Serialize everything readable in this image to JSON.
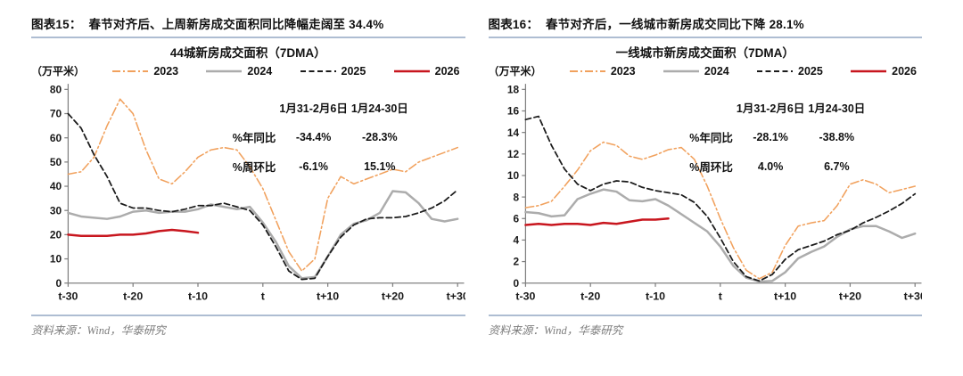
{
  "colors": {
    "series_2023": "#F1A15D",
    "series_2024": "#ACACAC",
    "series_2025": "#1B1B1B",
    "series_2026": "#C8161E",
    "axis": "#808080",
    "rule_line": "#AEBDD2",
    "source_text": "#7D7D7D"
  },
  "charts": [
    {
      "figure_label": "图表15：",
      "figure_title": "春节对齐后、上周新房成交面积同比降幅走阔至 34.4%",
      "chart_title": "44城新房成交面积（7DMA）",
      "unit_label": "（万平米）",
      "table": {
        "header": [
          "",
          "1月31-2月6日",
          "1月24-30日"
        ],
        "rows": [
          [
            "%年同比",
            "-34.4%",
            "-28.3%"
          ],
          [
            "%周环比",
            "-6.1%",
            "15.1%"
          ]
        ]
      },
      "source_label": "资料来源：Wind，华泰研究",
      "chart_data": {
        "type": "line",
        "x_labels": [
          "t-30",
          "t-20",
          "t-10",
          "t",
          "t+10",
          "t+20",
          "t+30"
        ],
        "x_range": [
          -30,
          30
        ],
        "x_step": 2,
        "ylim": [
          0,
          80
        ],
        "y_step": 10,
        "legend_position": "top",
        "grid": false,
        "series": [
          {
            "name": "2023",
            "color": "#F1A15D",
            "style": "dashdot",
            "width": 1.5,
            "values": [
              45,
              46,
              52,
              65,
              76,
              70,
              55,
              43,
              41,
              46,
              52,
              55,
              56,
              55,
              48,
              39,
              26,
              13,
              5,
              10,
              35,
              44,
              41,
              43,
              45,
              47,
              46,
              50,
              52,
              54,
              56
            ]
          },
          {
            "name": "2024",
            "color": "#ACACAC",
            "style": "solid",
            "width": 2.4,
            "values": [
              29,
              27.5,
              27,
              26.5,
              27.5,
              29.5,
              30,
              29,
              29.5,
              29.5,
              30.5,
              32.5,
              31.5,
              30.5,
              31.5,
              25,
              17,
              7,
              2,
              2.5,
              11,
              20,
              24.5,
              26,
              29,
              38,
              37.5,
              33,
              26.5,
              25.5,
              26.5
            ]
          },
          {
            "name": "2025",
            "color": "#1B1B1B",
            "style": "dashed",
            "width": 1.7,
            "values": [
              70,
              64,
              53,
              44,
              33,
              31,
              31,
              30,
              29.5,
              30.5,
              32,
              32,
              33,
              31.5,
              30,
              24,
              15,
              5,
              1.5,
              2,
              11,
              19,
              24,
              26.5,
              27,
              27,
              27.5,
              29,
              31,
              34,
              38.5
            ]
          },
          {
            "name": "2026",
            "color": "#C8161E",
            "style": "solid",
            "width": 2.4,
            "values": [
              20,
              19.5,
              19.5,
              19.5,
              20,
              20,
              20.5,
              21.5,
              22,
              21.5,
              20.8,
              null,
              null,
              null,
              null,
              null,
              null,
              null,
              null,
              null,
              null,
              null,
              null,
              null,
              null,
              null,
              null,
              null,
              null,
              null,
              null
            ]
          }
        ]
      }
    },
    {
      "figure_label": "图表16：",
      "figure_title": "春节对齐后，一线城市新房成交同比下降 28.1%",
      "chart_title": "一线城市新房成交面积（7DMA）",
      "unit_label": "（万平米）",
      "table": {
        "header": [
          "",
          "1月31-2月6日",
          "1月24-30日"
        ],
        "rows": [
          [
            "%年同比",
            "-28.1%",
            "-38.8%"
          ],
          [
            "%周环比",
            "4.0%",
            "6.7%"
          ]
        ]
      },
      "source_label": "资料来源：Wind，华泰研究",
      "chart_data": {
        "type": "line",
        "x_labels": [
          "t-30",
          "t-20",
          "t-10",
          "t",
          "t+10",
          "t+20",
          "t+30"
        ],
        "x_range": [
          -30,
          30
        ],
        "x_step": 2,
        "ylim": [
          0,
          18
        ],
        "y_step": 2,
        "legend_position": "top",
        "grid": false,
        "series": [
          {
            "name": "2023",
            "color": "#F1A15D",
            "style": "dashdot",
            "width": 1.5,
            "values": [
              7,
              7.2,
              7.6,
              9,
              10.5,
              12.3,
              13.1,
              12.8,
              11.8,
              11.5,
              11.9,
              12.4,
              12.6,
              11.5,
              9,
              6,
              3.3,
              1.2,
              0.4,
              1,
              3.5,
              5.3,
              5.6,
              5.8,
              7.2,
              9.2,
              9.6,
              9.2,
              8.4,
              8.7,
              9
            ]
          },
          {
            "name": "2024",
            "color": "#ACACAC",
            "style": "solid",
            "width": 2.4,
            "values": [
              6.6,
              6.5,
              6.2,
              6.3,
              7.8,
              8.3,
              8.7,
              8.5,
              7.7,
              7.6,
              7.8,
              7.2,
              6.4,
              5.6,
              4.8,
              3.4,
              1.6,
              0.5,
              0.15,
              0.2,
              1,
              2.3,
              2.9,
              3.4,
              4.3,
              5,
              5.3,
              5.3,
              4.8,
              4.2,
              4.6
            ]
          },
          {
            "name": "2025",
            "color": "#1B1B1B",
            "style": "dashed",
            "width": 1.7,
            "values": [
              15.2,
              15.5,
              12.8,
              10.6,
              9.2,
              8.6,
              9.2,
              9.5,
              9.4,
              8.9,
              8.6,
              8.4,
              8.2,
              7.5,
              6.2,
              4.2,
              2,
              0.6,
              0.2,
              0.8,
              2.2,
              3.1,
              3.5,
              3.9,
              4.5,
              4.9,
              5.6,
              6.1,
              6.7,
              7.4,
              8.3
            ]
          },
          {
            "name": "2026",
            "color": "#C8161E",
            "style": "solid",
            "width": 2.4,
            "values": [
              5.4,
              5.5,
              5.4,
              5.5,
              5.5,
              5.4,
              5.6,
              5.5,
              5.7,
              5.9,
              5.9,
              6.0,
              null,
              null,
              null,
              null,
              null,
              null,
              null,
              null,
              null,
              null,
              null,
              null,
              null,
              null,
              null,
              null,
              null,
              null,
              null
            ]
          }
        ]
      }
    }
  ]
}
